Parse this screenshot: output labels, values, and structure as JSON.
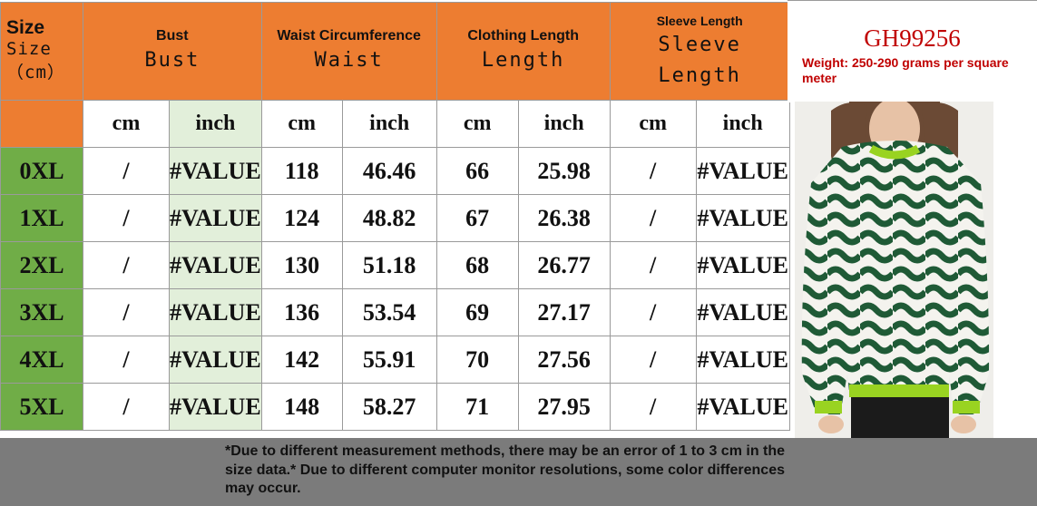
{
  "header": {
    "size": {
      "line1": "Size",
      "line2": "Size",
      "line3": "（cm）"
    },
    "bust": {
      "small": "Bust",
      "big": "Bust"
    },
    "waist": {
      "small": "Waist Circumference",
      "big": "Waist"
    },
    "length": {
      "small": "Clothing Length",
      "big": "Length"
    },
    "sleeve": {
      "small": "Sleeve Length",
      "big1": "Sleeve",
      "big2": "Length"
    }
  },
  "units": [
    "cm",
    "inch",
    "cm",
    "inch",
    "cm",
    "inch",
    "cm",
    "inch"
  ],
  "rows": [
    {
      "size": "0XL",
      "bust_cm": "/",
      "bust_in": "#VALUE",
      "waist_cm": "118",
      "waist_in": "46.46",
      "len_cm": "66",
      "len_in": "25.98",
      "sleeve_cm": "/",
      "sleeve_in": "#VALUE"
    },
    {
      "size": "1XL",
      "bust_cm": "/",
      "bust_in": "#VALUE",
      "waist_cm": "124",
      "waist_in": "48.82",
      "len_cm": "67",
      "len_in": "26.38",
      "sleeve_cm": "/",
      "sleeve_in": "#VALUE"
    },
    {
      "size": "2XL",
      "bust_cm": "/",
      "bust_in": "#VALUE",
      "waist_cm": "130",
      "waist_in": "51.18",
      "len_cm": "68",
      "len_in": "26.77",
      "sleeve_cm": "/",
      "sleeve_in": "#VALUE"
    },
    {
      "size": "3XL",
      "bust_cm": "/",
      "bust_in": "#VALUE",
      "waist_cm": "136",
      "waist_in": "53.54",
      "len_cm": "69",
      "len_in": "27.17",
      "sleeve_cm": "/",
      "sleeve_in": "#VALUE"
    },
    {
      "size": "4XL",
      "bust_cm": "/",
      "bust_in": "#VALUE",
      "waist_cm": "142",
      "waist_in": "55.91",
      "len_cm": "70",
      "len_in": "27.56",
      "sleeve_cm": "/",
      "sleeve_in": "#VALUE"
    },
    {
      "size": "5XL",
      "bust_cm": "/",
      "bust_in": "#VALUE",
      "waist_cm": "148",
      "waist_in": "58.27",
      "len_cm": "71",
      "len_in": "27.95",
      "sleeve_cm": "/",
      "sleeve_in": "#VALUE"
    }
  ],
  "product": {
    "code": "GH99256",
    "weight": "Weight: 250-290 grams per square meter"
  },
  "note": "*Due to different measurement methods, there may be an error of 1 to 3 cm in the size data.* Due to different computer monitor resolutions, some color differences may occur.",
  "colors": {
    "header_bg": "#ed7d31",
    "size_bg": "#70ad47",
    "inch_bg": "#e2efda",
    "code_color": "#c00000",
    "sweater_green": "#1f5a36",
    "trim_green": "#99d321",
    "footer_bg": "#7b7b7b"
  },
  "icons": {
    "product_photo": "sweater-photo"
  }
}
